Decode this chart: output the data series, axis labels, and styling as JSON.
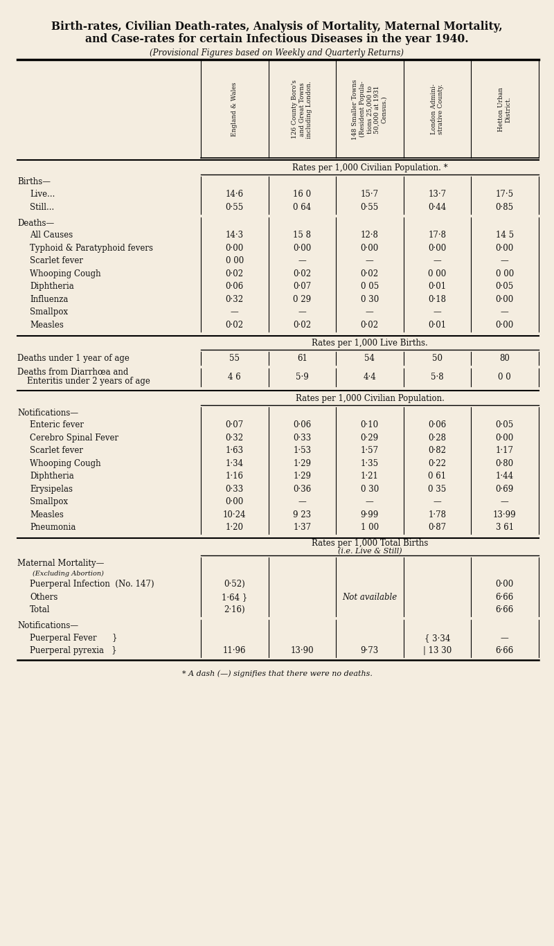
{
  "bg_color": "#f4ede0",
  "title_line1": "Birth-rates, Civilian Death-rates, Analysis of Mortality, Maternal Mortality,",
  "title_line2": "and Case-rates for certain Infectious Diseases in the year 1940.",
  "subtitle": "(Provisional Figures based on Weekly and Quarterly Returns)",
  "footnote": "* A dash (—) signifies that there were no deaths.",
  "col_headers": [
    "England & Wales",
    "126 County Boro's\nand Great Towns\nincluding London.",
    "148 Smaller Towns\n(Resident Popula-\ntions 25,000 to\n50,000 at 1931\nCensus.)",
    "London Admini-\nstrative County.",
    "Hetton Urban\nDistrict."
  ],
  "table_items": [
    {
      "type": "rate_header",
      "text": "Rates per 1,000 Civilian Population. *"
    },
    {
      "type": "group_label",
      "text": "Births—"
    },
    {
      "type": "data_row",
      "label": "Live...",
      "trailer": "   ...   ...",
      "indent": 1,
      "values": [
        "14·6",
        "16 0",
        "15·7",
        "13·7",
        "17·5"
      ]
    },
    {
      "type": "data_row",
      "label": "Still...",
      "trailer": "   ...   ...",
      "indent": 1,
      "values": [
        "0·55",
        "0 64",
        "0·55",
        "0·44",
        "0·85"
      ]
    },
    {
      "type": "gap"
    },
    {
      "type": "group_label",
      "text": "Deaths—"
    },
    {
      "type": "data_row",
      "label": "All Causes",
      "trailer": "   ...   ...",
      "indent": 1,
      "values": [
        "14·3",
        "15 8",
        "12·8",
        "17·8",
        "14 5"
      ]
    },
    {
      "type": "data_row",
      "label": "Typhoid & Paratyphoid fevers",
      "trailer": "",
      "indent": 1,
      "values": [
        "0·00",
        "0·00",
        "0·00",
        "0·00",
        "0·00"
      ]
    },
    {
      "type": "data_row",
      "label": "Scarlet fever",
      "trailer": "   ...   ...",
      "indent": 1,
      "values": [
        "0 00",
        "—",
        "—",
        "—",
        "—"
      ]
    },
    {
      "type": "data_row",
      "label": "Whooping Cough",
      "trailer": "   ...",
      "indent": 1,
      "values": [
        "0·02",
        "0·02",
        "0·02",
        "0 00",
        "0 00"
      ]
    },
    {
      "type": "data_row",
      "label": "Diphtheria",
      "trailer": "   ...   ...",
      "indent": 1,
      "values": [
        "0·06",
        "0·07",
        "0 05",
        "0·01",
        "0·05"
      ]
    },
    {
      "type": "data_row",
      "label": "Influenza",
      "trailer": "   ...   ...",
      "indent": 1,
      "values": [
        "0·32",
        "0 29",
        "0 30",
        "0·18",
        "0·00"
      ]
    },
    {
      "type": "data_row",
      "label": "Smallpox",
      "trailer": "   ...   ..",
      "indent": 1,
      "values": [
        "—",
        "—",
        "—",
        "—",
        "—"
      ]
    },
    {
      "type": "data_row",
      "label": "Measles",
      "trailer": "   ...   ...",
      "indent": 1,
      "values": [
        "0·02",
        "0·02",
        "0·02",
        "0·01",
        "0·00"
      ]
    },
    {
      "type": "section_break"
    },
    {
      "type": "rate_header",
      "text": "Rates per 1,000 Live Births."
    },
    {
      "type": "data_row",
      "label": "Deaths under 1 year of age",
      "trailer": "   ...",
      "indent": 0,
      "values": [
        "55",
        "61",
        "54",
        "50",
        "80"
      ]
    },
    {
      "type": "gap"
    },
    {
      "type": "data_row_2line",
      "label1": "Deaths from Diarrhœa and",
      "label2": "Enteritis under 2 years of age",
      "indent": 0,
      "values": [
        "4 6",
        "5·9",
        "4·4",
        "5·8",
        "0 0"
      ]
    },
    {
      "type": "section_break"
    },
    {
      "type": "rate_header",
      "text": "Rates per 1,000 Civilian Population."
    },
    {
      "type": "group_label",
      "text": "Notifications—"
    },
    {
      "type": "data_row",
      "label": "Enteric fever",
      "trailer": "   ...   ...",
      "indent": 1,
      "values": [
        "0·07",
        "0·06",
        "0·10",
        "0·06",
        "0·05"
      ]
    },
    {
      "type": "data_row",
      "label": "Cerebro Spinal Fever",
      "trailer": "   ...",
      "indent": 1,
      "values": [
        "0·32",
        "0·33",
        "0·29",
        "0·28",
        "0·00"
      ]
    },
    {
      "type": "data_row",
      "label": "Scarlet fever",
      "trailer": "   ...   ...",
      "indent": 1,
      "values": [
        "1·63",
        "1·53",
        "1·57",
        "0·82",
        "1·17"
      ]
    },
    {
      "type": "data_row",
      "label": "Whooping Cough",
      "trailer": "   ...",
      "indent": 1,
      "values": [
        "1·34",
        "1·29",
        "1·35",
        "0·22",
        "0·80"
      ]
    },
    {
      "type": "data_row",
      "label": "Diphtheria",
      "trailer": "   ...   ...",
      "indent": 1,
      "values": [
        "1·16",
        "1·29",
        "1·21",
        "0 61",
        "1·44"
      ]
    },
    {
      "type": "data_row",
      "label": "Erysipelas",
      "trailer": "   ...   ...",
      "indent": 1,
      "values": [
        "0·33",
        "0·36",
        "0 30",
        "0 35",
        "0·69"
      ]
    },
    {
      "type": "data_row",
      "label": "Smallpox",
      "trailer": "   ...",
      "indent": 1,
      "values": [
        "0·00",
        "—",
        "—",
        "—",
        "—"
      ]
    },
    {
      "type": "data_row",
      "label": "Measles",
      "trailer": "   ...   ",
      "indent": 1,
      "values": [
        "10·24",
        "9 23",
        "9·99",
        "1·78",
        "13·99"
      ]
    },
    {
      "type": "data_row",
      "label": "Pneumonia",
      "trailer": "   ...   ...",
      "indent": 1,
      "values": [
        "1·20",
        "1·37",
        "1 00",
        "0·87",
        "3 61"
      ]
    },
    {
      "type": "section_break"
    },
    {
      "type": "rate_header_2line",
      "text1": "Rates per 1,000 Total Births",
      "text2": "(i.e. Live & Still)"
    },
    {
      "type": "group_label",
      "text": "Maternal Mortality—"
    },
    {
      "type": "group_sublabel",
      "text": "(Excluding Abortion)"
    },
    {
      "type": "maternal_row",
      "label": "Puerperal Infection  (No. 147)",
      "col0": "0·52)",
      "col4": "0·00"
    },
    {
      "type": "maternal_row",
      "label": "Others",
      "trailer": "   ...   ...",
      "col0": "1·64 }",
      "middle": "Not available",
      "col4": "6·66"
    },
    {
      "type": "maternal_row",
      "label": "Total",
      "trailer": "   ...   ...",
      "col0": "2·16)",
      "col4": "6·66"
    },
    {
      "type": "gap"
    },
    {
      "type": "group_label",
      "text": "Notifications—"
    },
    {
      "type": "fever_row",
      "label": "Puerperal Fever      }",
      "col3": "{ 3·34",
      "col4": "—"
    },
    {
      "type": "fever_row",
      "label": "Puerperal pyrexia   }",
      "col0": "11·96",
      "col1": "13·90",
      "col2": "9·73",
      "col3": "| 13 30",
      "col4": "6·66"
    }
  ]
}
